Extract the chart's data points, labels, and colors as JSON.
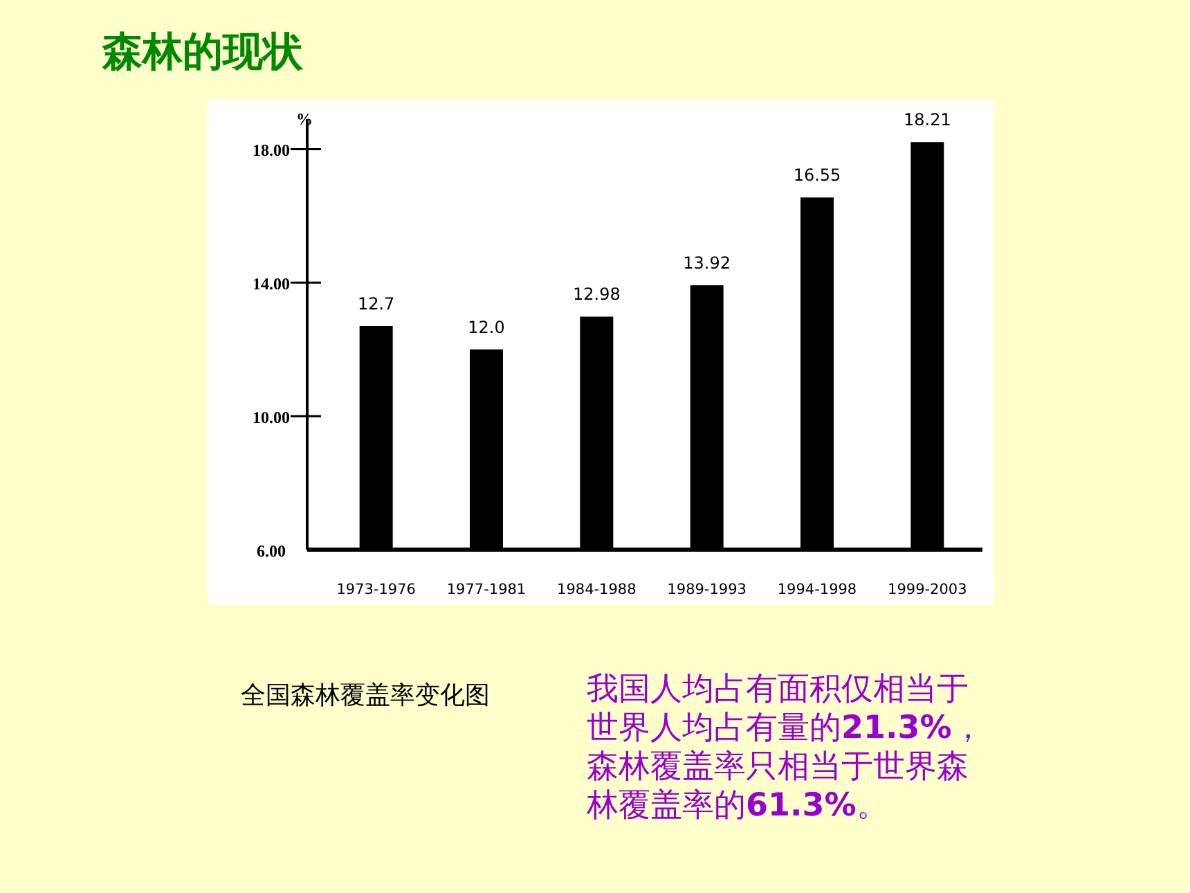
{
  "chart_data": {
    "type": "bar",
    "title": "森林的现状",
    "ylabel": "%",
    "categories": [
      "1973-1976",
      "1977-1981",
      "1984-1988",
      "1989-1993",
      "1994-1998",
      "1999-2003"
    ],
    "values": [
      12.7,
      12.0,
      12.98,
      13.92,
      16.55,
      18.21
    ],
    "value_labels": [
      "12.7",
      "12.0",
      "12.98",
      "13.92",
      "16.55",
      "18.21"
    ],
    "color": "#000000",
    "ylim": [
      6,
      18.9
    ],
    "yticks": [
      {
        "value": 6,
        "label": "6.00"
      },
      {
        "value": 10,
        "label": "10.00"
      },
      {
        "value": 14,
        "label": "14.00"
      },
      {
        "value": 18,
        "label": "18.00"
      }
    ],
    "grid": false,
    "annotations": [
      "全国森林覆盖率变化图",
      "我国人均占有面积仅相当于世界人均占有量的21.3%，森林覆盖率只相当于世界森林覆盖率的61.3%。"
    ]
  }
}
